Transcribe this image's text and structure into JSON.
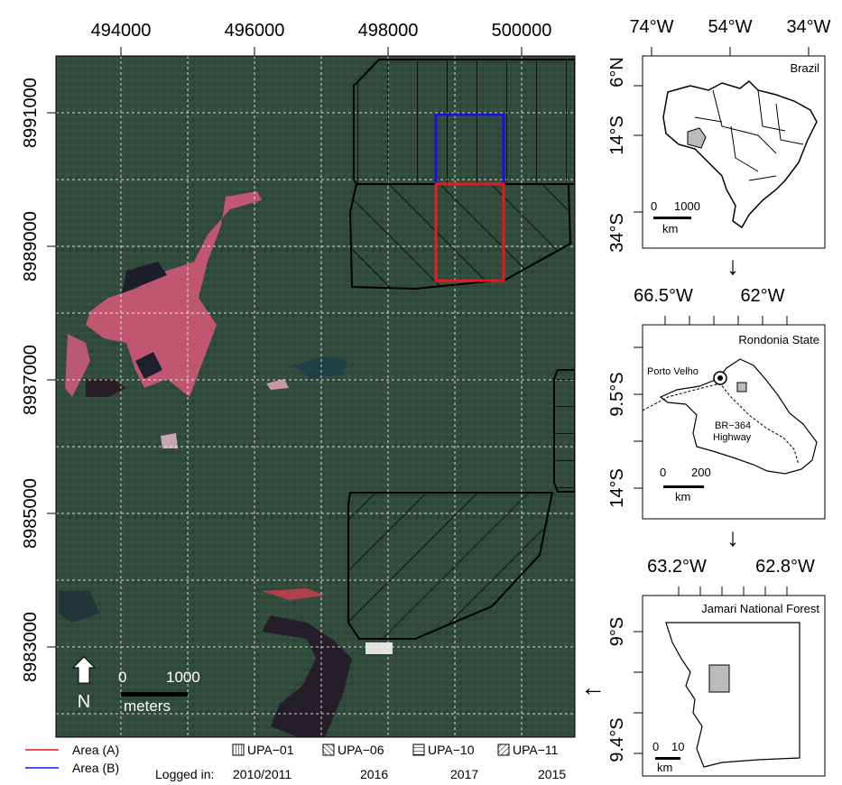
{
  "main_map": {
    "x_ticks": [
      "494000",
      "496000",
      "498000",
      "500000"
    ],
    "y_ticks": [
      "8991000",
      "8989000",
      "8987000",
      "8985000",
      "8983000"
    ],
    "scale_bar": {
      "start": "0",
      "end": "1000",
      "unit": "meters"
    },
    "north_label": "N",
    "colors": {
      "area_a": "#e8191b",
      "area_b": "#1414e0",
      "forest": "#2f4a3a"
    }
  },
  "inset_brazil": {
    "title": "Brazil",
    "x_ticks": [
      "74°W",
      "54°W",
      "34°W"
    ],
    "y_ticks": [
      "6°N",
      "14°S",
      "34°S"
    ],
    "scale_bar": {
      "start": "0",
      "end": "1000",
      "unit": "km"
    }
  },
  "inset_rondonia": {
    "title": "Rondonia State",
    "x_ticks": [
      "66.5°W",
      "62°W"
    ],
    "y_ticks": [
      "9.5°S",
      "14°S"
    ],
    "city_label": "Porto Velho",
    "road_label_1": "BR−364",
    "road_label_2": "Highway",
    "scale_bar": {
      "start": "0",
      "end": "200",
      "unit": "km"
    }
  },
  "inset_jamari": {
    "title": "Jamari National Forest",
    "x_ticks": [
      "63.2°W",
      "62.8°W"
    ],
    "y_ticks": [
      "9°S",
      "9.4°S"
    ],
    "scale_bar": {
      "start": "0",
      "end": "10",
      "unit": "km"
    }
  },
  "arrows": {
    "down": "↓",
    "left": "←"
  },
  "legend": {
    "area_a": "Area (A)",
    "area_b": "Area (B)",
    "logged_in_label": "Logged in:",
    "upa": [
      {
        "name": "UPA−01",
        "year": "2010/2011",
        "hatch": "vertical"
      },
      {
        "name": "UPA−06",
        "year": "2016",
        "hatch": "diagonal-up"
      },
      {
        "name": "UPA−10",
        "year": "2017",
        "hatch": "horizontal"
      },
      {
        "name": "UPA−11",
        "year": "2015",
        "hatch": "diagonal-down"
      }
    ]
  }
}
